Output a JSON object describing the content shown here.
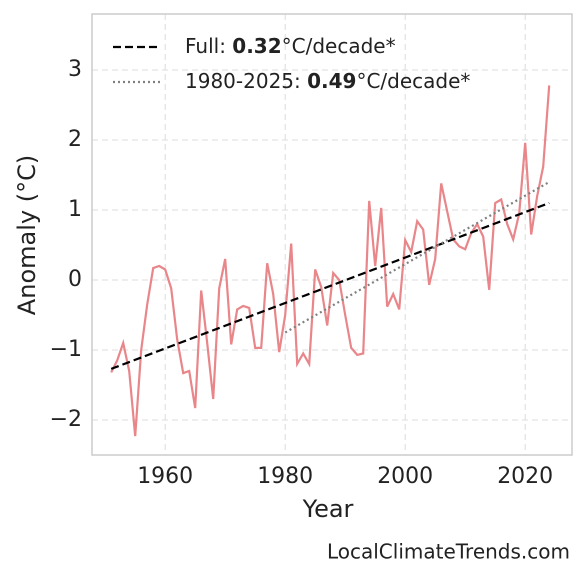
{
  "chart_data": {
    "type": "line",
    "xlabel": "Year",
    "ylabel": "Anomaly (°C)",
    "annotation": "LocalClimateTrends.com",
    "xlim": [
      1947.8,
      2027.8
    ],
    "ylim": [
      -2.5,
      3.8
    ],
    "xticks": [
      1960,
      1980,
      2000,
      2020
    ],
    "yticks": [
      {
        "value": -2,
        "label": "−2"
      },
      {
        "value": -1,
        "label": "−1"
      },
      0,
      1,
      2,
      3
    ],
    "grid": true,
    "legend": "upper left",
    "series": [
      {
        "color": "#e8868a",
        "style": "solid",
        "x": [
          1951,
          1952,
          1953,
          1954,
          1955,
          1956,
          1957,
          1958,
          1959,
          1960,
          1961,
          1962,
          1963,
          1964,
          1965,
          1966,
          1967,
          1968,
          1969,
          1970,
          1971,
          1972,
          1973,
          1974,
          1975,
          1976,
          1977,
          1978,
          1979,
          1980,
          1981,
          1982,
          1983,
          1984,
          1985,
          1986,
          1987,
          1988,
          1989,
          1990,
          1991,
          1992,
          1993,
          1994,
          1995,
          1996,
          1997,
          1998,
          1999,
          2000,
          2001,
          2002,
          2003,
          2004,
          2005,
          2006,
          2007,
          2008,
          2009,
          2010,
          2011,
          2012,
          2013,
          2014,
          2015,
          2016,
          2017,
          2018,
          2019,
          2020,
          2021,
          2022,
          2023,
          2024
        ],
        "values": [
          -1.32,
          -1.15,
          -0.9,
          -1.3,
          -2.23,
          -1.0,
          -0.35,
          0.17,
          0.2,
          0.15,
          -0.12,
          -0.85,
          -1.33,
          -1.3,
          -1.83,
          -0.15,
          -0.9,
          -1.7,
          -0.12,
          0.3,
          -0.92,
          -0.42,
          -0.37,
          -0.4,
          -0.97,
          -0.97,
          0.24,
          -0.2,
          -1.03,
          -0.5,
          0.52,
          -1.2,
          -1.05,
          -1.2,
          0.15,
          -0.1,
          -0.65,
          0.1,
          0.0,
          -0.5,
          -0.97,
          -1.07,
          -1.05,
          1.13,
          0.2,
          1.03,
          -0.38,
          -0.2,
          -0.42,
          0.57,
          0.4,
          0.84,
          0.72,
          -0.07,
          0.3,
          1.38,
          0.98,
          0.58,
          0.48,
          0.44,
          0.67,
          0.8,
          0.62,
          -0.14,
          1.1,
          1.15,
          0.8,
          0.58,
          0.95,
          1.96,
          0.65,
          1.2,
          1.62,
          2.78
        ]
      },
      {
        "name": "Full: 0.32°C/decade*",
        "color": "#000000",
        "style": "dashed",
        "x": [
          1951,
          2024
        ],
        "values": [
          -1.27,
          1.1
        ]
      },
      {
        "name": "1980-2025: 0.49°C/decade*",
        "color": "#808080",
        "style": "dotted",
        "x": [
          1980,
          2024
        ],
        "values": [
          -0.75,
          1.4
        ]
      }
    ]
  }
}
